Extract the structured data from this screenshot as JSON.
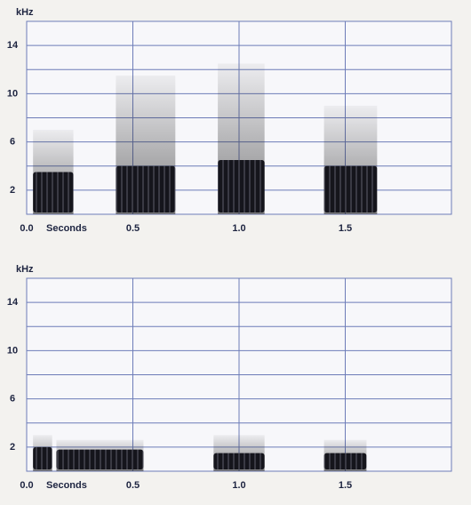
{
  "chart_data": [
    {
      "type": "spectrogram",
      "y_label": "kHz",
      "x_label": "Seconds",
      "xlim": [
        0,
        2
      ],
      "xticks": [
        {
          "value": 0,
          "label": "0.0"
        },
        0.5,
        {
          "value": 1,
          "label": "1.0"
        },
        1.5
      ],
      "ylim": [
        0,
        16
      ],
      "yticks": [
        2,
        6,
        10,
        14
      ],
      "ygrid": [
        0,
        2,
        4,
        6,
        8,
        10,
        12,
        14,
        16
      ],
      "color": "#15151c",
      "segments": [
        {
          "start": 0.03,
          "end": 0.22,
          "dense_top": 3.5,
          "peak": 7
        },
        {
          "start": 0.42,
          "end": 0.7,
          "dense_top": 4,
          "peak": 11.5
        },
        {
          "start": 0.9,
          "end": 1.12,
          "dense_top": 4.5,
          "peak": 12.5
        },
        {
          "start": 1.4,
          "end": 1.65,
          "dense_top": 4,
          "peak": 9
        }
      ]
    },
    {
      "type": "spectrogram",
      "y_label": "kHz",
      "x_label": "Seconds",
      "xlim": [
        0,
        2
      ],
      "xticks": [
        {
          "value": 0,
          "label": "0.0"
        },
        0.5,
        {
          "value": 1,
          "label": "1.0"
        },
        1.5
      ],
      "ylim": [
        0,
        16
      ],
      "yticks": [
        2,
        6,
        10,
        14
      ],
      "ygrid": [
        0,
        2,
        4,
        6,
        8,
        10,
        12,
        14,
        16
      ],
      "color": "#15151c",
      "segments": [
        {
          "start": 0.03,
          "end": 0.12,
          "dense_top": 2,
          "peak": 3
        },
        {
          "start": 0.14,
          "end": 0.55,
          "dense_top": 1.8,
          "peak": 2.6
        },
        {
          "start": 0.88,
          "end": 1.12,
          "dense_top": 1.5,
          "peak": 3
        },
        {
          "start": 1.4,
          "end": 1.6,
          "dense_top": 1.5,
          "peak": 2.6
        }
      ]
    }
  ]
}
